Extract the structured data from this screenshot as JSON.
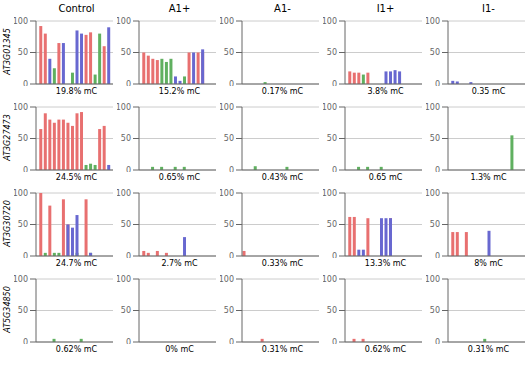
{
  "chart_data": [
    {
      "type": "bar",
      "title": "Control",
      "x_label": "19.8% mC",
      "annotations": [
        "AT3G01345"
      ],
      "x": [
        1,
        2,
        3,
        4,
        5,
        6,
        7,
        8,
        9,
        10,
        11,
        12,
        13,
        14,
        15,
        16
      ],
      "series": [
        {
          "color": "#e87070",
          "values": [
            92,
            80,
            0,
            0,
            65,
            0,
            0,
            0,
            0,
            0,
            78,
            82,
            0,
            0,
            60,
            0
          ]
        },
        {
          "color": "#60b060",
          "values": [
            0,
            0,
            0,
            25,
            0,
            0,
            0,
            18,
            0,
            0,
            0,
            0,
            15,
            80,
            0,
            0
          ]
        },
        {
          "color": "#6868d0",
          "values": [
            0,
            0,
            40,
            0,
            0,
            65,
            0,
            0,
            85,
            80,
            0,
            0,
            0,
            0,
            0,
            90
          ]
        }
      ],
      "xlim": [
        0,
        17
      ],
      "ylim": [
        0,
        100
      ],
      "yticks": [
        0,
        50,
        100
      ],
      "grid": true,
      "tick_labels": "y"
    },
    {
      "type": "bar",
      "title": "A1+",
      "x_label": "15.2% mC",
      "x": [
        1,
        2,
        3,
        4,
        5,
        6,
        7,
        8,
        9,
        10,
        11,
        12,
        13,
        14
      ],
      "series": [
        {
          "color": "#e87070",
          "values": [
            50,
            45,
            40,
            38,
            0,
            0,
            0,
            0,
            0,
            0,
            50,
            0,
            50,
            50
          ]
        },
        {
          "color": "#60b060",
          "values": [
            0,
            0,
            0,
            0,
            40,
            35,
            40,
            0,
            0,
            12,
            0,
            0,
            0,
            0
          ]
        },
        {
          "color": "#6868d0",
          "values": [
            0,
            0,
            0,
            0,
            0,
            0,
            0,
            12,
            5,
            0,
            0,
            50,
            0,
            55
          ]
        }
      ],
      "xlim": [
        0,
        17
      ],
      "ylim": [
        0,
        100
      ],
      "yticks": [
        0,
        50,
        100
      ],
      "grid": true,
      "tick_labels": "y"
    },
    {
      "type": "bar",
      "title": "A1-",
      "x_label": "0.17% mC",
      "x": [
        1,
        5
      ],
      "series": [
        {
          "color": "#e87070",
          "values": [
            0,
            0
          ]
        },
        {
          "color": "#60b060",
          "values": [
            0,
            3
          ]
        },
        {
          "color": "#6868d0",
          "values": [
            0,
            0
          ]
        }
      ],
      "xlim": [
        0,
        17
      ],
      "ylim": [
        0,
        100
      ],
      "yticks": [
        0,
        50,
        100
      ],
      "grid": true,
      "tick_labels": "y"
    },
    {
      "type": "bar",
      "title": "I1+",
      "x_label": "3.8% mC",
      "x": [
        1,
        2,
        3,
        4,
        5,
        9,
        10,
        11,
        12
      ],
      "series": [
        {
          "color": "#e87070",
          "values": [
            20,
            18,
            18,
            0,
            18,
            0,
            0,
            0,
            0
          ]
        },
        {
          "color": "#60b060",
          "values": [
            0,
            0,
            0,
            15,
            0,
            0,
            0,
            0,
            0
          ]
        },
        {
          "color": "#6868d0",
          "values": [
            0,
            0,
            0,
            0,
            0,
            20,
            20,
            22,
            20
          ]
        }
      ],
      "xlim": [
        0,
        17
      ],
      "ylim": [
        0,
        100
      ],
      "yticks": [
        0,
        50,
        100
      ],
      "grid": true,
      "tick_labels": "y"
    },
    {
      "type": "bar",
      "title": "I1-",
      "x_label": "0.35 mC",
      "x": [
        1,
        2,
        5
      ],
      "series": [
        {
          "color": "#e87070",
          "values": [
            0,
            0,
            0
          ]
        },
        {
          "color": "#60b060",
          "values": [
            0,
            0,
            0
          ]
        },
        {
          "color": "#6868d0",
          "values": [
            5,
            4,
            3
          ]
        }
      ],
      "xlim": [
        0,
        17
      ],
      "ylim": [
        0,
        100
      ],
      "yticks": [
        0,
        50,
        100
      ],
      "grid": true,
      "tick_labels": "y"
    },
    {
      "type": "bar",
      "x_label": "24.5% mC",
      "annotations": [
        "AT3G27473"
      ],
      "x": [
        1,
        2,
        3,
        4,
        5,
        6,
        7,
        8,
        9,
        10,
        11,
        12,
        13,
        14,
        15,
        16
      ],
      "series": [
        {
          "color": "#e87070",
          "values": [
            65,
            90,
            80,
            75,
            80,
            80,
            75,
            70,
            90,
            92,
            0,
            0,
            0,
            65,
            70,
            0
          ]
        },
        {
          "color": "#60b060",
          "values": [
            0,
            0,
            0,
            0,
            0,
            0,
            0,
            0,
            0,
            0,
            8,
            10,
            8,
            0,
            0,
            0
          ]
        },
        {
          "color": "#6868d0",
          "values": [
            0,
            0,
            0,
            0,
            0,
            0,
            0,
            0,
            0,
            0,
            0,
            0,
            0,
            0,
            0,
            8
          ]
        }
      ],
      "xlim": [
        0,
        17
      ],
      "ylim": [
        0,
        100
      ],
      "yticks": [
        0,
        50,
        100
      ],
      "grid": true,
      "tick_labels": "y"
    },
    {
      "type": "bar",
      "x_label": "0.65% mC",
      "x": [
        3,
        5,
        8,
        10
      ],
      "series": [
        {
          "color": "#e87070",
          "values": [
            0,
            0,
            0,
            0
          ]
        },
        {
          "color": "#60b060",
          "values": [
            5,
            5,
            5,
            5
          ]
        },
        {
          "color": "#6868d0",
          "values": [
            0,
            0,
            0,
            0
          ]
        }
      ],
      "xlim": [
        0,
        17
      ],
      "ylim": [
        0,
        100
      ],
      "yticks": [
        0,
        50,
        100
      ],
      "grid": true,
      "tick_labels": "y"
    },
    {
      "type": "bar",
      "x_label": "0.43% mC",
      "x": [
        3,
        10
      ],
      "series": [
        {
          "color": "#e87070",
          "values": [
            0,
            0
          ]
        },
        {
          "color": "#60b060",
          "values": [
            6,
            5
          ]
        },
        {
          "color": "#6868d0",
          "values": [
            0,
            0
          ]
        }
      ],
      "xlim": [
        0,
        17
      ],
      "ylim": [
        0,
        100
      ],
      "yticks": [
        0,
        50,
        100
      ],
      "grid": true,
      "tick_labels": "y"
    },
    {
      "type": "bar",
      "x_label": "0.65 mC",
      "x": [
        3,
        5,
        8
      ],
      "series": [
        {
          "color": "#e87070",
          "values": [
            0,
            0,
            0
          ]
        },
        {
          "color": "#60b060",
          "values": [
            5,
            5,
            5
          ]
        },
        {
          "color": "#6868d0",
          "values": [
            0,
            0,
            0
          ]
        }
      ],
      "xlim": [
        0,
        17
      ],
      "ylim": [
        0,
        100
      ],
      "yticks": [
        0,
        50,
        100
      ],
      "grid": true,
      "tick_labels": "y"
    },
    {
      "type": "bar",
      "x_label": "1.3% mC",
      "x": [
        14
      ],
      "series": [
        {
          "color": "#e87070",
          "values": [
            0
          ]
        },
        {
          "color": "#60b060",
          "values": [
            55
          ]
        },
        {
          "color": "#6868d0",
          "values": [
            0
          ]
        }
      ],
      "xlim": [
        0,
        17
      ],
      "ylim": [
        0,
        100
      ],
      "yticks": [
        0,
        50,
        100
      ],
      "grid": true,
      "tick_labels": "y"
    },
    {
      "type": "bar",
      "x_label": "24.7% mC",
      "annotations": [
        "AT3G30720"
      ],
      "x": [
        1,
        2,
        3,
        4,
        5,
        6,
        7,
        8,
        9,
        10,
        11,
        12
      ],
      "series": [
        {
          "color": "#e87070",
          "values": [
            100,
            0,
            80,
            0,
            0,
            90,
            50,
            0,
            0,
            0,
            90,
            0
          ]
        },
        {
          "color": "#60b060",
          "values": [
            0,
            5,
            0,
            5,
            5,
            0,
            0,
            0,
            5,
            0,
            0,
            5
          ]
        },
        {
          "color": "#6868d0",
          "values": [
            0,
            0,
            0,
            0,
            0,
            0,
            50,
            45,
            65,
            0,
            0,
            5
          ]
        }
      ],
      "xlim": [
        0,
        17
      ],
      "ylim": [
        0,
        100
      ],
      "yticks": [
        0,
        50,
        100
      ],
      "grid": true,
      "tick_labels": "y"
    },
    {
      "type": "bar",
      "x_label": "2.7% mC",
      "x": [
        1,
        2,
        4,
        6,
        10
      ],
      "series": [
        {
          "color": "#e87070",
          "values": [
            8,
            5,
            8,
            5,
            0
          ]
        },
        {
          "color": "#60b060",
          "values": [
            0,
            0,
            0,
            0,
            0
          ]
        },
        {
          "color": "#6868d0",
          "values": [
            0,
            0,
            0,
            0,
            30
          ]
        }
      ],
      "xlim": [
        0,
        17
      ],
      "ylim": [
        0,
        100
      ],
      "yticks": [
        0,
        50,
        100
      ],
      "grid": true,
      "tick_labels": "y"
    },
    {
      "type": "bar",
      "x_label": "0.33% mC",
      "x": [
        1
      ],
      "series": [
        {
          "color": "#e87070",
          "values": [
            8
          ]
        },
        {
          "color": "#60b060",
          "values": [
            0
          ]
        },
        {
          "color": "#6868d0",
          "values": [
            0
          ]
        }
      ],
      "xlim": [
        0,
        17
      ],
      "ylim": [
        0,
        100
      ],
      "yticks": [
        0,
        50,
        100
      ],
      "grid": true,
      "tick_labels": "y"
    },
    {
      "type": "bar",
      "x_label": "13.3% mC",
      "x": [
        1,
        2,
        3,
        4,
        5,
        8,
        9,
        10
      ],
      "series": [
        {
          "color": "#e87070",
          "values": [
            62,
            62,
            0,
            0,
            60,
            0,
            0,
            60
          ]
        },
        {
          "color": "#60b060",
          "values": [
            0,
            0,
            0,
            0,
            0,
            0,
            0,
            0
          ]
        },
        {
          "color": "#6868d0",
          "values": [
            0,
            0,
            10,
            10,
            0,
            60,
            60,
            60
          ]
        }
      ],
      "xlim": [
        0,
        17
      ],
      "ylim": [
        0,
        100
      ],
      "yticks": [
        0,
        50,
        100
      ],
      "grid": true,
      "tick_labels": "y"
    },
    {
      "type": "bar",
      "x_label": "8% mC",
      "x": [
        1,
        2,
        4,
        9
      ],
      "series": [
        {
          "color": "#e87070",
          "values": [
            38,
            38,
            38,
            0
          ]
        },
        {
          "color": "#60b060",
          "values": [
            0,
            0,
            0,
            0
          ]
        },
        {
          "color": "#6868d0",
          "values": [
            0,
            0,
            0,
            40
          ]
        }
      ],
      "xlim": [
        0,
        17
      ],
      "ylim": [
        0,
        100
      ],
      "yticks": [
        0,
        50,
        100
      ],
      "grid": true,
      "tick_labels": "y"
    },
    {
      "type": "bar",
      "x_label": "0.62% mC",
      "annotations": [
        "AT5G34850"
      ],
      "x": [
        4,
        10
      ],
      "series": [
        {
          "color": "#e87070",
          "values": [
            0,
            0
          ]
        },
        {
          "color": "#60b060",
          "values": [
            5,
            5
          ]
        },
        {
          "color": "#6868d0",
          "values": [
            0,
            0
          ]
        }
      ],
      "xlim": [
        0,
        17
      ],
      "ylim": [
        0,
        100
      ],
      "yticks": [
        0,
        50,
        100
      ],
      "grid": true,
      "tick_labels": "y"
    },
    {
      "type": "bar",
      "x_label": "0% mC",
      "x": [],
      "series": [
        {
          "color": "#e87070",
          "values": []
        },
        {
          "color": "#60b060",
          "values": []
        },
        {
          "color": "#6868d0",
          "values": []
        }
      ],
      "xlim": [
        0,
        17
      ],
      "ylim": [
        0,
        100
      ],
      "yticks": [
        0,
        50,
        100
      ],
      "grid": true,
      "tick_labels": "y"
    },
    {
      "type": "bar",
      "x_label": "0.31% mC",
      "x": [
        5
      ],
      "series": [
        {
          "color": "#e87070",
          "values": [
            5
          ]
        },
        {
          "color": "#60b060",
          "values": [
            0
          ]
        },
        {
          "color": "#6868d0",
          "values": [
            0
          ]
        }
      ],
      "xlim": [
        0,
        17
      ],
      "ylim": [
        0,
        100
      ],
      "yticks": [
        0,
        50,
        100
      ],
      "grid": true,
      "tick_labels": "y"
    },
    {
      "type": "bar",
      "x_label": "0.62% mC",
      "x": [
        2,
        4
      ],
      "series": [
        {
          "color": "#e87070",
          "values": [
            5,
            5
          ]
        },
        {
          "color": "#60b060",
          "values": [
            0,
            0
          ]
        },
        {
          "color": "#6868d0",
          "values": [
            0,
            0
          ]
        }
      ],
      "xlim": [
        0,
        17
      ],
      "ylim": [
        0,
        100
      ],
      "yticks": [
        0,
        50,
        100
      ],
      "grid": true,
      "tick_labels": "y"
    },
    {
      "type": "bar",
      "x_label": "0.31% mC",
      "x": [
        8
      ],
      "series": [
        {
          "color": "#e87070",
          "values": [
            0
          ]
        },
        {
          "color": "#60b060",
          "values": [
            5
          ]
        },
        {
          "color": "#6868d0",
          "values": [
            0
          ]
        }
      ],
      "xlim": [
        0,
        17
      ],
      "ylim": [
        0,
        100
      ],
      "yticks": [
        0,
        50,
        100
      ],
      "grid": true,
      "tick_labels": "y"
    }
  ]
}
